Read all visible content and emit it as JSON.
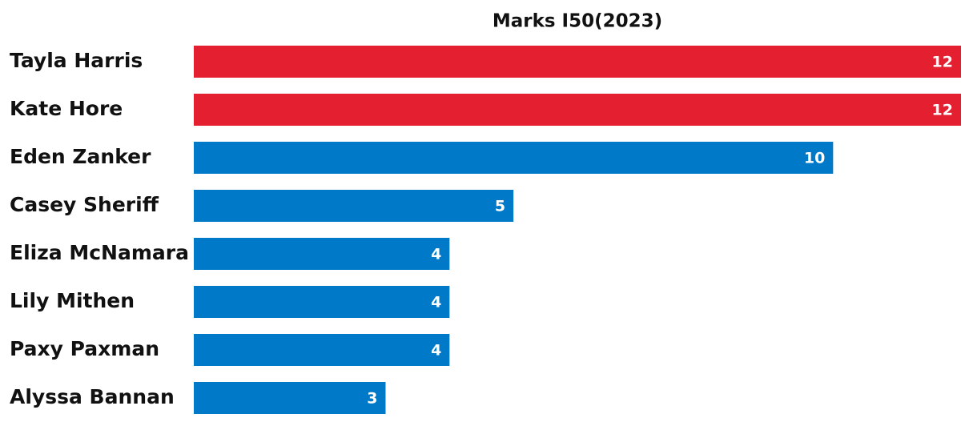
{
  "chart_data": {
    "type": "barh",
    "title": "Marks I50(2023)",
    "categories": [
      "Tayla Harris",
      "Kate Hore",
      "Eden Zanker",
      "Casey Sheriff",
      "Eliza McNamara",
      "Lily Mithen",
      "Paxy Paxman",
      "Alyssa Bannan"
    ],
    "values": [
      12,
      12,
      10,
      5,
      4,
      4,
      4,
      3
    ],
    "colors": [
      "#e31f30",
      "#e31f30",
      "#0079c8",
      "#0079c8",
      "#0079c8",
      "#0079c8",
      "#0079c8",
      "#0079c8"
    ],
    "xlim": [
      0,
      12
    ]
  }
}
